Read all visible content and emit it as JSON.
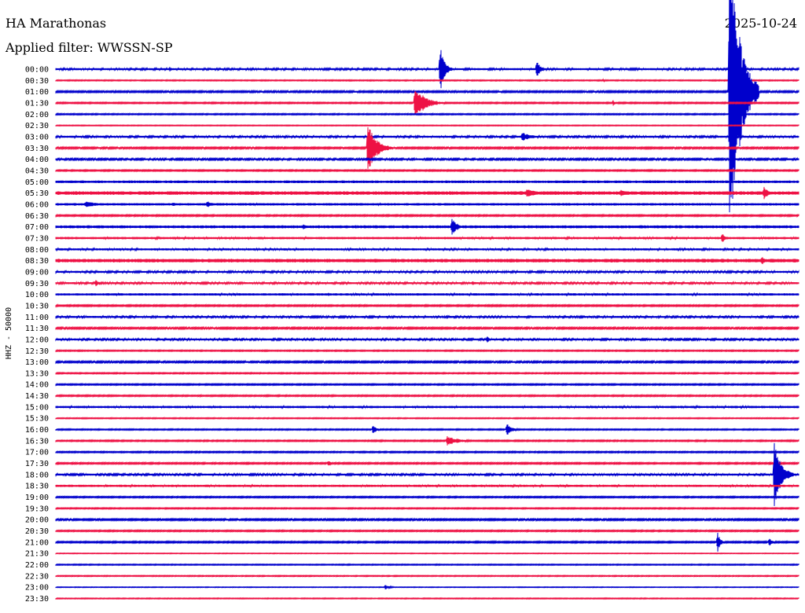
{
  "header": {
    "station": "HA Marathonas",
    "filter": "Applied filter: WWSSN-SP",
    "date": "2025-10-24"
  },
  "chart_data": {
    "type": "line",
    "title": "HA Marathonas",
    "subtitle": "Applied filter: WWSSN-SP",
    "date": "2025-10-24",
    "ylabel": "HHZ - 50000",
    "row_labels": [
      "00:00",
      "00:30",
      "01:00",
      "01:30",
      "02:00",
      "02:30",
      "03:00",
      "03:30",
      "04:00",
      "04:30",
      "05:00",
      "05:30",
      "06:00",
      "06:30",
      "07:00",
      "07:30",
      "08:00",
      "08:30",
      "09:00",
      "09:30",
      "10:00",
      "10:30",
      "11:00",
      "11:30",
      "12:00",
      "12:30",
      "13:00",
      "13:30",
      "14:00",
      "14:30",
      "15:00",
      "15:30",
      "16:00",
      "16:30",
      "17:00",
      "17:30",
      "18:00",
      "18:30",
      "19:00",
      "19:30",
      "20:00",
      "20:30",
      "21:00",
      "21:30",
      "22:00",
      "22:30",
      "23:00",
      "23:30"
    ],
    "row_minutes": 30,
    "series_colors": [
      "#0000cc",
      "#ee1144"
    ],
    "color_pattern": "alternating starting blue",
    "grid": false,
    "legend": "none",
    "row_noise": [
      1.2,
      0.6,
      1.0,
      0.8,
      0.7,
      0.5,
      1.2,
      1.0,
      1.1,
      0.8,
      1.6,
      2.2,
      1.5,
      0.9,
      1.8,
      1.4,
      1.3,
      2.2,
      1.2,
      1.2,
      1.4,
      0.9,
      1.2,
      1.0,
      1.2,
      0.7,
      1.0,
      0.7,
      0.8,
      0.8,
      1.4,
      0.6,
      0.7,
      0.8,
      0.8,
      0.9,
      1.2,
      1.4,
      0.8,
      0.7,
      1.0,
      0.8,
      0.9,
      0.4,
      0.6,
      0.6,
      0.4,
      0.5
    ],
    "events": [
      {
        "row": 0,
        "minute": 4.6,
        "amp": 3,
        "dur_min": 0.3
      },
      {
        "row": 0,
        "minute": 15.5,
        "amp": 36,
        "dur_min": 0.5
      },
      {
        "row": 0,
        "minute": 19.4,
        "amp": 12,
        "dur_min": 0.5
      },
      {
        "row": 1,
        "minute": 22.1,
        "amp": 3,
        "dur_min": 0.2
      },
      {
        "row": 2,
        "minute": 27.2,
        "amp": 200,
        "dur_min": 1.2
      },
      {
        "row": 3,
        "minute": 14.5,
        "amp": 22,
        "dur_min": 1.2
      },
      {
        "row": 3,
        "minute": 22.5,
        "amp": 4,
        "dur_min": 0.2
      },
      {
        "row": 6,
        "minute": 18.8,
        "amp": 6,
        "dur_min": 1.2
      },
      {
        "row": 7,
        "minute": 12.6,
        "amp": 32,
        "dur_min": 1.0
      },
      {
        "row": 11,
        "minute": 19.0,
        "amp": 6,
        "dur_min": 1.2
      },
      {
        "row": 11,
        "minute": 22.8,
        "amp": 5,
        "dur_min": 0.7
      },
      {
        "row": 11,
        "minute": 28.6,
        "amp": 9,
        "dur_min": 0.5
      },
      {
        "row": 12,
        "minute": 1.2,
        "amp": 4,
        "dur_min": 1.5
      },
      {
        "row": 12,
        "minute": 4.7,
        "amp": 4,
        "dur_min": 0.3
      },
      {
        "row": 12,
        "minute": 6.1,
        "amp": 5,
        "dur_min": 0.5
      },
      {
        "row": 14,
        "minute": 10.0,
        "amp": 3,
        "dur_min": 0.5
      },
      {
        "row": 14,
        "minute": 16.0,
        "amp": 12,
        "dur_min": 0.6
      },
      {
        "row": 15,
        "minute": 26.9,
        "amp": 8,
        "dur_min": 0.4
      },
      {
        "row": 17,
        "minute": 28.5,
        "amp": 6,
        "dur_min": 0.5
      },
      {
        "row": 19,
        "minute": 1.6,
        "amp": 5,
        "dur_min": 0.4
      },
      {
        "row": 19,
        "minute": 16.8,
        "amp": 3,
        "dur_min": 0.5
      },
      {
        "row": 20,
        "minute": 11.0,
        "amp": 3,
        "dur_min": 0.3
      },
      {
        "row": 24,
        "minute": 17.4,
        "amp": 7,
        "dur_min": 0.2
      },
      {
        "row": 32,
        "minute": 12.8,
        "amp": 8,
        "dur_min": 0.4
      },
      {
        "row": 32,
        "minute": 18.2,
        "amp": 10,
        "dur_min": 0.5
      },
      {
        "row": 33,
        "minute": 15.8,
        "amp": 6,
        "dur_min": 1.4
      },
      {
        "row": 35,
        "minute": 11.0,
        "amp": 4,
        "dur_min": 0.3
      },
      {
        "row": 36,
        "minute": 29.0,
        "amp": 45,
        "dur_min": 0.8
      },
      {
        "row": 42,
        "minute": 26.7,
        "amp": 18,
        "dur_min": 0.3
      },
      {
        "row": 42,
        "minute": 28.8,
        "amp": 8,
        "dur_min": 0.3
      },
      {
        "row": 46,
        "minute": 13.3,
        "amp": 3,
        "dur_min": 0.5
      }
    ]
  }
}
